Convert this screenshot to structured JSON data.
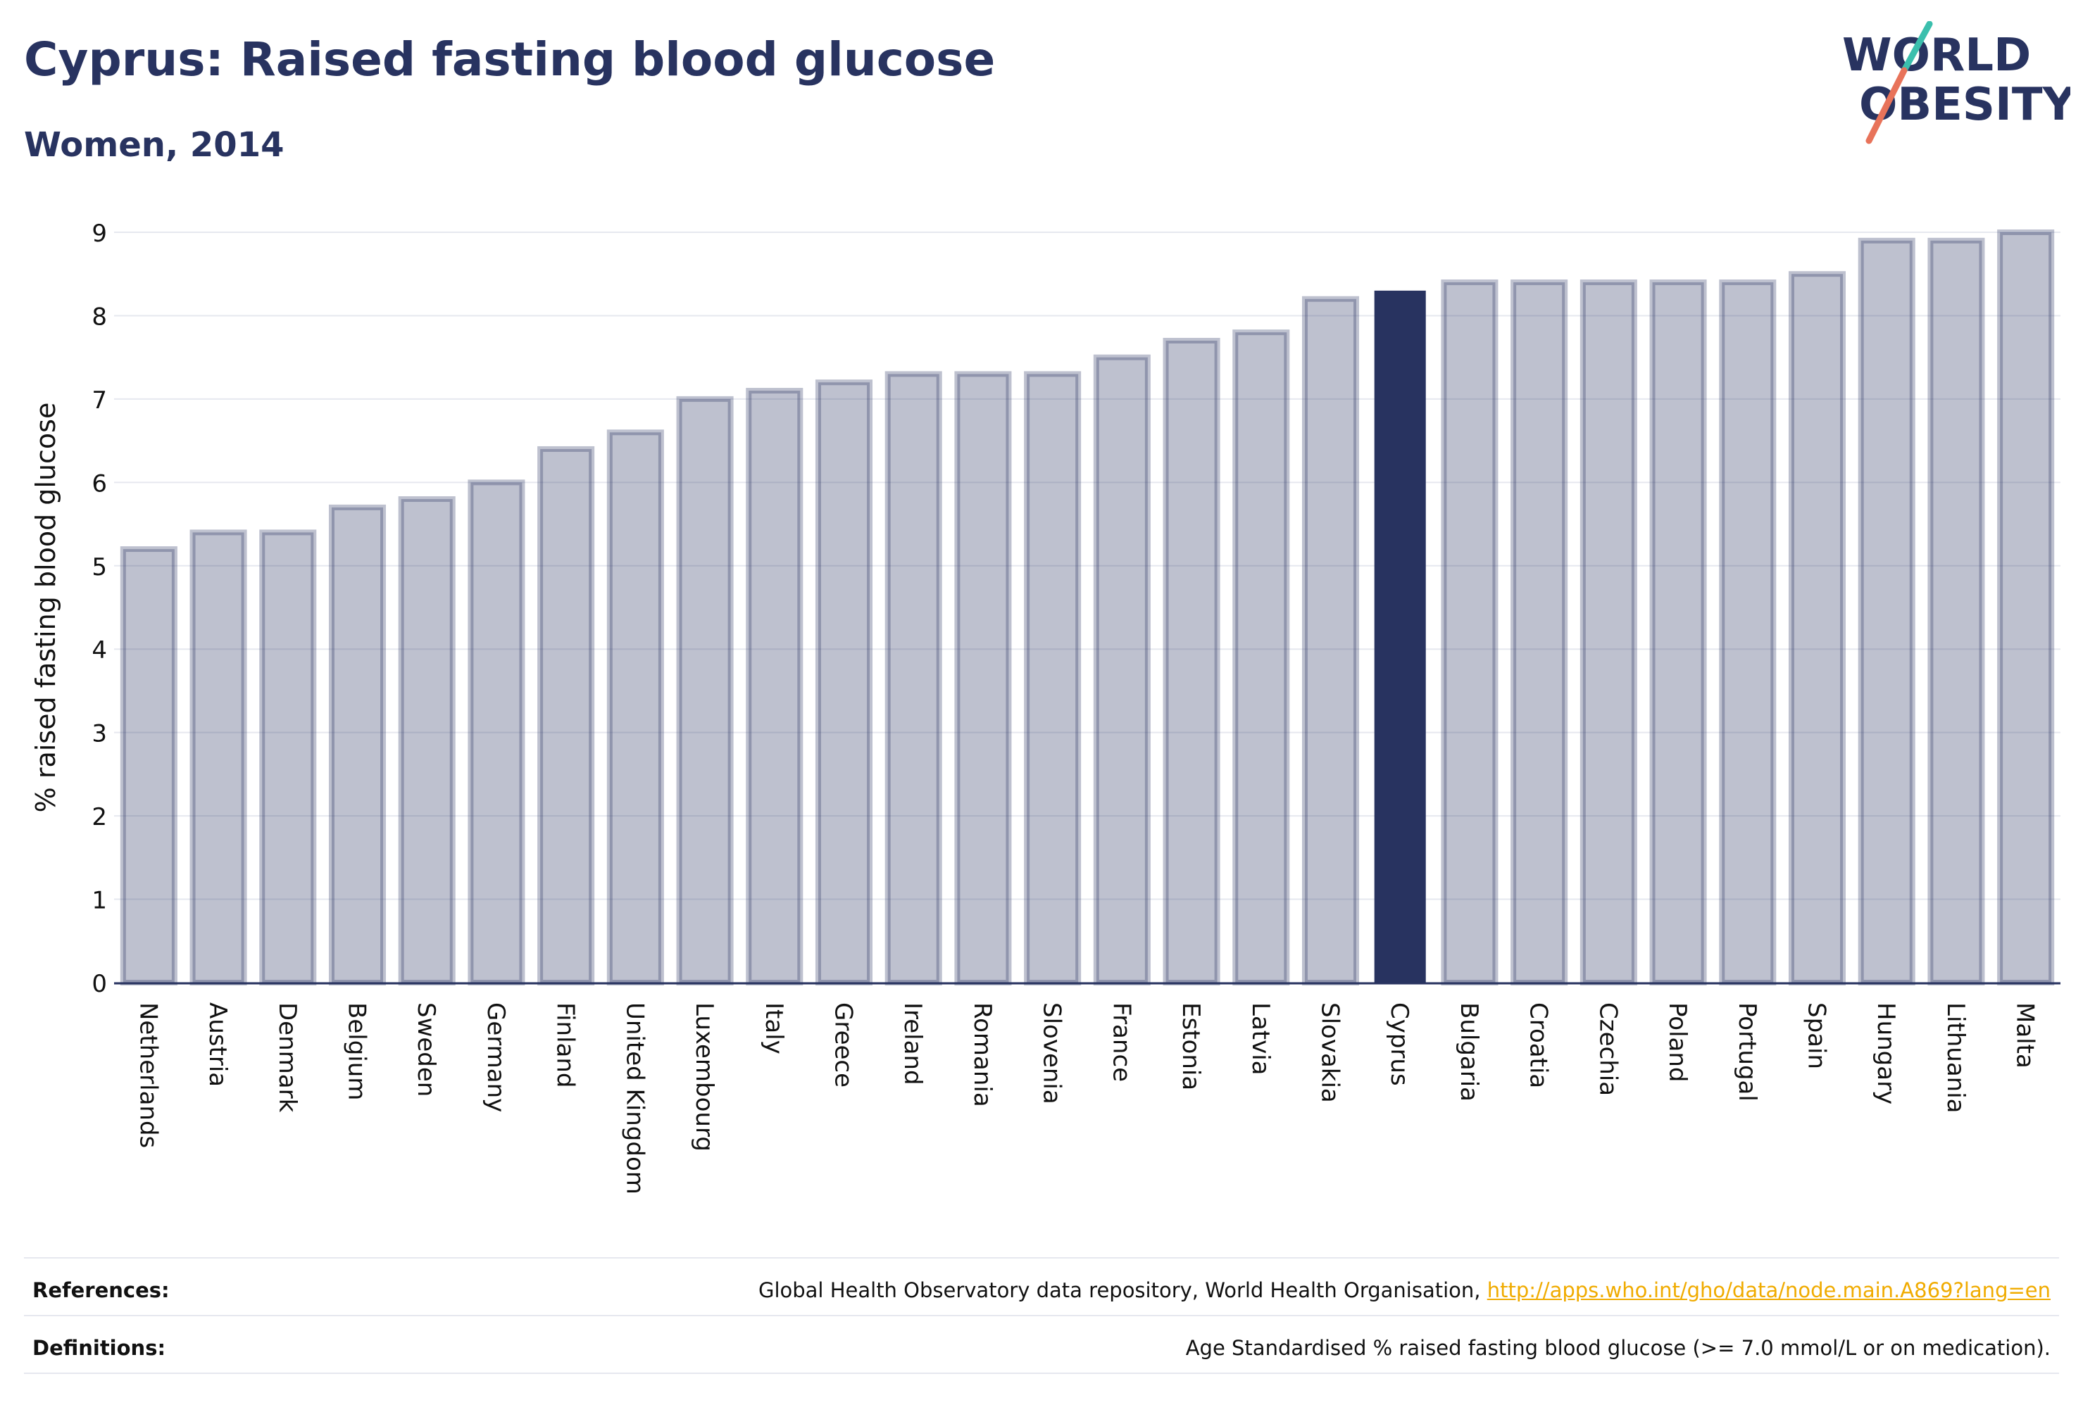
{
  "header": {
    "title": "Cyprus: Raised fasting blood glucose",
    "subtitle": "Women, 2014"
  },
  "logo": {
    "line1": "WORLD",
    "line2": "OBESITY",
    "navy": "#283360",
    "teal": "#3bbfad",
    "coral": "#e8735a"
  },
  "chart_data": {
    "type": "bar",
    "ylabel": "% raised fasting blood glucose",
    "xlabel": "",
    "ylim": [
      0,
      9
    ],
    "yticks": [
      0,
      1,
      2,
      3,
      4,
      5,
      6,
      7,
      8,
      9
    ],
    "grid": true,
    "highlight": "Cyprus",
    "colors": {
      "bar": "#283360",
      "highlight": "#283360"
    },
    "categories": [
      "Netherlands",
      "Austria",
      "Denmark",
      "Belgium",
      "Sweden",
      "Germany",
      "Finland",
      "United Kingdom",
      "Luxembourg",
      "Italy",
      "Greece",
      "Ireland",
      "Romania",
      "Slovenia",
      "France",
      "Estonia",
      "Latvia",
      "Slovakia",
      "Cyprus",
      "Bulgaria",
      "Croatia",
      "Czechia",
      "Poland",
      "Portugal",
      "Spain",
      "Hungary",
      "Lithuania",
      "Malta"
    ],
    "values": [
      5.2,
      5.4,
      5.4,
      5.7,
      5.8,
      6.0,
      6.4,
      6.6,
      7.0,
      7.1,
      7.2,
      7.3,
      7.3,
      7.3,
      7.5,
      7.7,
      7.8,
      8.2,
      8.3,
      8.4,
      8.4,
      8.4,
      8.4,
      8.4,
      8.5,
      8.9,
      8.9,
      9.0
    ]
  },
  "footer": {
    "references_label": "References:",
    "references_text": "Global Health Observatory data repository, World Health Organisation, ",
    "references_link": "http://apps.who.int/gho/data/node.main.A869?lang=en",
    "definitions_label": "Definitions:",
    "definitions_text": "Age Standardised % raised fasting blood glucose (>= 7.0 mmol/L or on medication)."
  }
}
